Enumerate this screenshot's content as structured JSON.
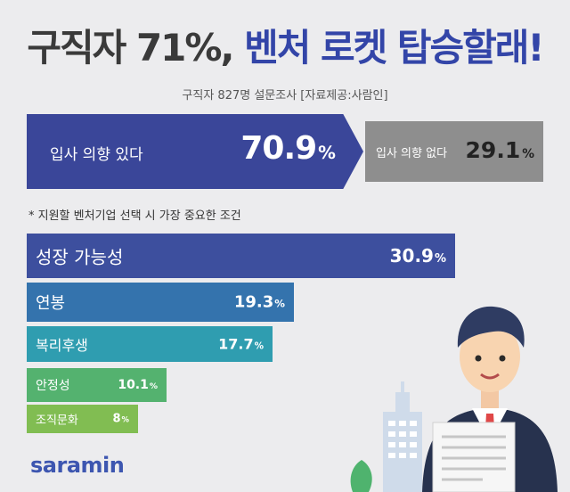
{
  "title": {
    "part1": "구직자 71%,",
    "part2": "벤처 로켓 탑승할래!"
  },
  "subtitle": "구직자 827명 설문조사 [자료제공:사람인]",
  "intent": {
    "yes_label": "입사 의향 있다",
    "yes_value": "70.9",
    "yes_unit": "%",
    "no_label": "입사 의향 없다",
    "no_value": "29.1",
    "no_unit": "%"
  },
  "note": "* 지원할 벤처기업 선택 시 가장 중요한 조건",
  "logo": "saramin",
  "chart_data": {
    "type": "bar",
    "orientation": "horizontal",
    "title": "",
    "categories": [
      "성장 가능성",
      "연봉",
      "복리후생",
      "안정성",
      "조직문화"
    ],
    "values": [
      30.9,
      19.3,
      17.7,
      10.1,
      8
    ],
    "value_labels": [
      "30.9",
      "19.3",
      "17.7",
      "10.1",
      "8"
    ],
    "unit": "%",
    "colors": [
      "#3d4f9e",
      "#3473ad",
      "#2f9db0",
      "#54b26f",
      "#81bd52"
    ],
    "top_intent_split": [
      70.9,
      29.1
    ]
  }
}
